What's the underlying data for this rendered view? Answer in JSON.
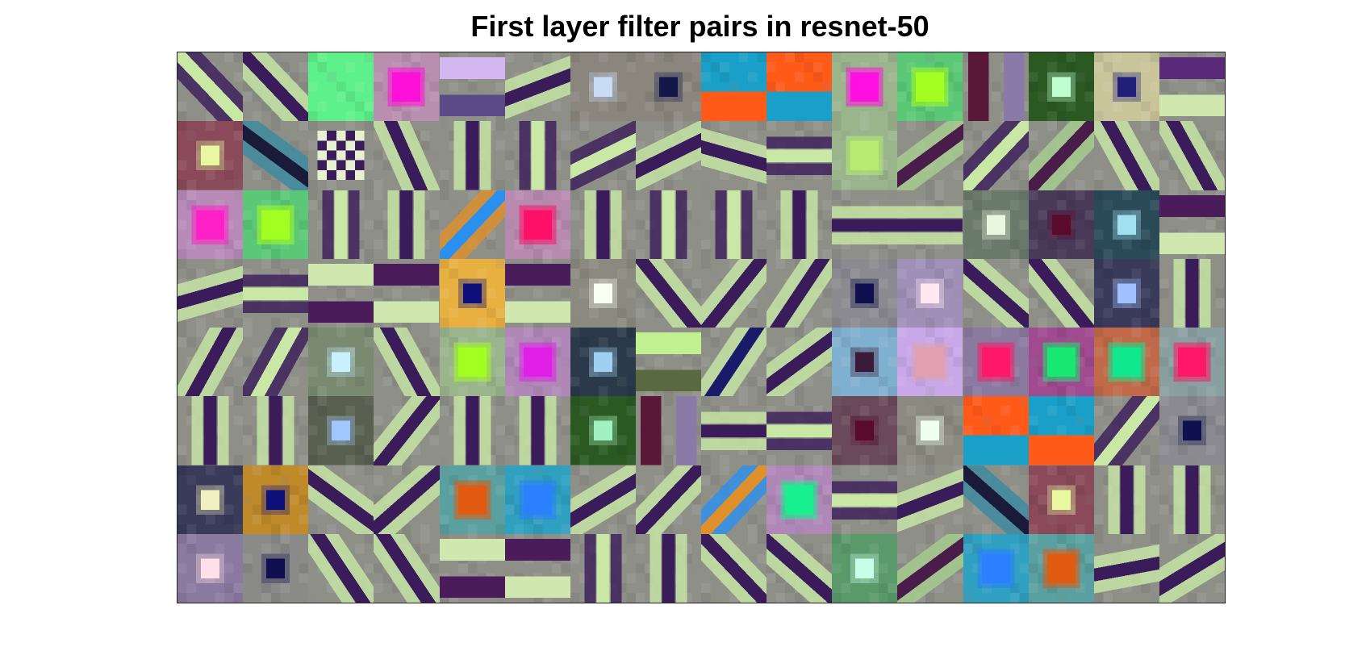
{
  "figure": {
    "title": "First layer filter pairs in resnet-50"
  },
  "grid": {
    "rows": 8,
    "cols": 16,
    "palette": {
      "gray": "#8e9088",
      "cream": "#c9e8a6",
      "purple": "#3a1c5a",
      "lavender": "#c7b8e6"
    },
    "tiles": [
      {
        "kind": "bar",
        "fg": "#c9e8a6",
        "bg2": "#3a1c5a",
        "ang": 45
      },
      {
        "kind": "bar",
        "fg": "#3a1c5a",
        "bg2": "#c9e8a6",
        "ang": 45
      },
      {
        "kind": "solid",
        "bg": "#5ef08a"
      },
      {
        "kind": "blob",
        "bg": "#b98fb0",
        "fg": "#ff10d8"
      },
      {
        "kind": "hstripe",
        "fg": "#d4b6f0",
        "bg2": "#5a4a88"
      },
      {
        "kind": "bar",
        "fg": "#3a1c5a",
        "bg2": "#c9e8a6",
        "ang": -20
      },
      {
        "kind": "dot",
        "bg": "#8a867e",
        "fg": "#c8dcf4"
      },
      {
        "kind": "dot",
        "bg": "#8a867e",
        "fg": "#141848"
      },
      {
        "kind": "split",
        "bg": "#1aa0c8",
        "fg": "#ff5a18"
      },
      {
        "kind": "split",
        "bg": "#ff5a18",
        "fg": "#1aa0c8"
      },
      {
        "kind": "blob",
        "bg": "#9ab48c",
        "fg": "#ff10e0"
      },
      {
        "kind": "blob",
        "bg": "#5ac876",
        "fg": "#a2ff20"
      },
      {
        "kind": "vstripe",
        "fg": "#5a1838",
        "bg2": "#8a7aa8"
      },
      {
        "kind": "dot",
        "bg": "#2a5a22",
        "fg": "#c0ffd0"
      },
      {
        "kind": "dot",
        "bg": "#cac49a",
        "fg": "#20207a"
      },
      {
        "kind": "hstripe",
        "fg": "#5a2a7a",
        "bg2": "#d0e8b0"
      },
      {
        "kind": "dot",
        "bg": "#8a4a5a",
        "fg": "#e8f8a0"
      },
      {
        "kind": "bar",
        "fg": "#1a1a3a",
        "bg2": "#3a8aa0",
        "ang": 35
      },
      {
        "kind": "check",
        "fg": "#e8f0d0",
        "bg2": "#3a1c5a"
      },
      {
        "kind": "bar",
        "fg": "#3a1c5a",
        "bg2": "#c9e8a6",
        "ang": 65
      },
      {
        "kind": "vbar",
        "fg": "#3a1c5a",
        "bg2": "#c9e8a6"
      },
      {
        "kind": "vbar",
        "fg": "#c9e8a6",
        "bg2": "#3a1c5a"
      },
      {
        "kind": "bar",
        "fg": "#c9e8a6",
        "bg2": "#3a1c5a",
        "ang": -25
      },
      {
        "kind": "bar",
        "fg": "#3a1c5a",
        "bg2": "#c9e8a6",
        "ang": -25
      },
      {
        "kind": "bar",
        "fg": "#3a1c5a",
        "bg2": "#c9e8a6",
        "ang": 15
      },
      {
        "kind": "hbar",
        "fg": "#c9e8a6",
        "bg2": "#3a1c5a"
      },
      {
        "kind": "blob",
        "bg": "#9ab48c",
        "fg": "#b8ec70"
      },
      {
        "kind": "bar",
        "fg": "#4a1c4a",
        "bg2": "#a8d090",
        "ang": -35
      },
      {
        "kind": "bar",
        "fg": "#c9e8a6",
        "bg2": "#3a1c5a",
        "ang": -45
      },
      {
        "kind": "bar",
        "fg": "#4a1c4a",
        "bg2": "#a8d090",
        "ang": -45
      },
      {
        "kind": "bar",
        "fg": "#3a1c5a",
        "bg2": "#c9e8a6",
        "ang": 60
      },
      {
        "kind": "bar",
        "fg": "#3a1c5a",
        "bg2": "#c9e8a6",
        "ang": 60
      },
      {
        "kind": "blob",
        "bg": "#b88ab8",
        "fg": "#ff20c8"
      },
      {
        "kind": "blob",
        "bg": "#5ac876",
        "fg": "#a2ff20"
      },
      {
        "kind": "vbar",
        "fg": "#c9e8a6",
        "bg2": "#3a1c5a"
      },
      {
        "kind": "vbar",
        "fg": "#3a1c5a",
        "bg2": "#c9e8a6"
      },
      {
        "kind": "bar",
        "fg": "#2a90f0",
        "bg2": "#e0902a",
        "ang": -45
      },
      {
        "kind": "blob",
        "bg": "#b88ab0",
        "fg": "#ff1068"
      },
      {
        "kind": "vbar",
        "fg": "#3a1c5a",
        "bg2": "#c9e8a6"
      },
      {
        "kind": "vbar",
        "fg": "#c9e8a6",
        "bg2": "#3a1c5a"
      },
      {
        "kind": "vbar",
        "fg": "#c9e8a6",
        "bg2": "#3a1c5a"
      },
      {
        "kind": "vbar",
        "fg": "#3a1c5a",
        "bg2": "#c9e8a6"
      },
      {
        "kind": "hbar",
        "fg": "#3a1c5a",
        "bg2": "#c9e8a6"
      },
      {
        "kind": "hbar",
        "fg": "#3a1c5a",
        "bg2": "#c9e8a6"
      },
      {
        "kind": "dot",
        "bg": "#6a7a6a",
        "fg": "#e8f8e0"
      },
      {
        "kind": "dot",
        "bg": "#4a3a5a",
        "fg": "#5a0a2a"
      },
      {
        "kind": "dot",
        "bg": "#2a4a58",
        "fg": "#a0e0f0"
      },
      {
        "kind": "hstripe",
        "fg": "#4a1c5a",
        "bg2": "#d0e8b0"
      },
      {
        "kind": "bar",
        "fg": "#3a1c5a",
        "bg2": "#c9e8a6",
        "ang": -15
      },
      {
        "kind": "hbar",
        "fg": "#c9e8a6",
        "bg2": "#3a1c5a"
      },
      {
        "kind": "hstripe",
        "fg": "#d0e8b0",
        "bg2": "#4a1c5a"
      },
      {
        "kind": "hstripe",
        "fg": "#4a1c5a",
        "bg2": "#d0e8b0"
      },
      {
        "kind": "dot",
        "bg": "#e8b040",
        "fg": "#10107a"
      },
      {
        "kind": "hstripe",
        "fg": "#4a1c5a",
        "bg2": "#d0e8b0"
      },
      {
        "kind": "dot",
        "bg": "#8a8a80",
        "fg": "#f8fff0"
      },
      {
        "kind": "bar",
        "fg": "#3a1c5a",
        "bg2": "#c9e8a6",
        "ang": 50
      },
      {
        "kind": "bar",
        "fg": "#3a1c5a",
        "bg2": "#c9e8a6",
        "ang": -50
      },
      {
        "kind": "bar",
        "fg": "#3a1c5a",
        "bg2": "#c9e8a6",
        "ang": -55
      },
      {
        "kind": "dot",
        "bg": "#8a8a90",
        "fg": "#101050"
      },
      {
        "kind": "dot",
        "bg": "#a090b8",
        "fg": "#ffe8f0"
      },
      {
        "kind": "bar",
        "fg": "#3a1c5a",
        "bg2": "#c9e8a6",
        "ang": 40
      },
      {
        "kind": "bar",
        "fg": "#3a1c5a",
        "bg2": "#c9e8a6",
        "ang": 50
      },
      {
        "kind": "dot",
        "bg": "#3a3a5a",
        "fg": "#a0c0ff"
      },
      {
        "kind": "vbar",
        "fg": "#3a1c5a",
        "bg2": "#c9e8a6"
      },
      {
        "kind": "bar",
        "fg": "#3a1c5a",
        "bg2": "#c9e8a6",
        "ang": -60
      },
      {
        "kind": "bar",
        "fg": "#c9e8a6",
        "bg2": "#3a1c5a",
        "ang": -60
      },
      {
        "kind": "dot",
        "bg": "#7a8a70",
        "fg": "#c8f0ff"
      },
      {
        "kind": "bar",
        "fg": "#3a1c5a",
        "bg2": "#c9e8a6",
        "ang": 60
      },
      {
        "kind": "blob",
        "bg": "#9ab48c",
        "fg": "#a2ff20"
      },
      {
        "kind": "blob",
        "bg": "#b088b8",
        "fg": "#e020e8"
      },
      {
        "kind": "dot",
        "bg": "#2a3a4a",
        "fg": "#a0d0f0"
      },
      {
        "kind": "hstripe",
        "fg": "#c0f090",
        "bg2": "#5a6a40"
      },
      {
        "kind": "bar",
        "fg": "#1a1a6a",
        "bg2": "#c9e8a6",
        "ang": -55
      },
      {
        "kind": "bar",
        "fg": "#3a1c5a",
        "bg2": "#c9e8a6",
        "ang": -35
      },
      {
        "kind": "dot",
        "bg": "#80b0d0",
        "fg": "#3a1c3a"
      },
      {
        "kind": "blob",
        "bg": "#c8a8e8",
        "fg": "#e0a0b0"
      },
      {
        "kind": "blob",
        "bg": "#8a7aa0",
        "fg": "#ff1868"
      },
      {
        "kind": "blob",
        "bg": "#a04a90",
        "fg": "#18e870"
      },
      {
        "kind": "blob",
        "bg": "#c06a4a",
        "fg": "#10e890"
      },
      {
        "kind": "blob",
        "bg": "#8aa0a0",
        "fg": "#ff1868"
      },
      {
        "kind": "vbar",
        "fg": "#3a1c5a",
        "bg2": "#c9e8a6"
      },
      {
        "kind": "vbar",
        "fg": "#3a1c5a",
        "bg2": "#c9e8a6"
      },
      {
        "kind": "dot",
        "bg": "#5a6050",
        "fg": "#a0c8ff"
      },
      {
        "kind": "bar",
        "fg": "#3a1c5a",
        "bg2": "#c9e8a6",
        "ang": -50
      },
      {
        "kind": "vbar",
        "fg": "#3a1c5a",
        "bg2": "#c9e8a6"
      },
      {
        "kind": "vbar",
        "fg": "#3a1c5a",
        "bg2": "#c9e8a6"
      },
      {
        "kind": "dot",
        "bg": "#2a5a22",
        "fg": "#a0f0c0"
      },
      {
        "kind": "vstripe",
        "fg": "#5a1838",
        "bg2": "#8a7aa8"
      },
      {
        "kind": "hbar",
        "fg": "#3a1c5a",
        "bg2": "#c9e8a6"
      },
      {
        "kind": "hbar",
        "fg": "#c9e8a6",
        "bg2": "#3a1c5a"
      },
      {
        "kind": "dot",
        "bg": "#6a4a5a",
        "fg": "#5a0a2a"
      },
      {
        "kind": "dot",
        "bg": "#8a8a80",
        "fg": "#f0fff0"
      },
      {
        "kind": "split",
        "bg": "#ff5a18",
        "fg": "#1aa0c8"
      },
      {
        "kind": "split",
        "bg": "#1aa0c8",
        "fg": "#ff5a18"
      },
      {
        "kind": "bar",
        "fg": "#c9e8a6",
        "bg2": "#3a1c5a",
        "ang": -50
      },
      {
        "kind": "dot",
        "bg": "#8a8a90",
        "fg": "#101050"
      },
      {
        "kind": "dot",
        "bg": "#3a3a5a",
        "fg": "#f0f0c0"
      },
      {
        "kind": "dot",
        "bg": "#c08a2a",
        "fg": "#10107a"
      },
      {
        "kind": "bar",
        "fg": "#3a1c5a",
        "bg2": "#c9e8a6",
        "ang": 35
      },
      {
        "kind": "bar",
        "fg": "#3a1c5a",
        "bg2": "#c9e8a6",
        "ang": -40
      },
      {
        "kind": "blob",
        "bg": "#5aa0a0",
        "fg": "#e05a10"
      },
      {
        "kind": "blob",
        "bg": "#30a0c0",
        "fg": "#2a80ff"
      },
      {
        "kind": "bar",
        "fg": "#3a1c5a",
        "bg2": "#c9e8a6",
        "ang": -30
      },
      {
        "kind": "bar",
        "fg": "#3a1c5a",
        "bg2": "#c9e8a6",
        "ang": -45
      },
      {
        "kind": "bar",
        "fg": "#e0902a",
        "bg2": "#2a90f0",
        "ang": -45
      },
      {
        "kind": "blob",
        "bg": "#b088b8",
        "fg": "#18f090"
      },
      {
        "kind": "hbar",
        "fg": "#c9e8a6",
        "bg2": "#3a1c5a"
      },
      {
        "kind": "bar",
        "fg": "#3a1c5a",
        "bg2": "#c9e8a6",
        "ang": -20
      },
      {
        "kind": "bar",
        "fg": "#1a1a3a",
        "bg2": "#3a8aa0",
        "ang": 40
      },
      {
        "kind": "dot",
        "bg": "#8a4a5a",
        "fg": "#e8f8a0"
      },
      {
        "kind": "vbar",
        "fg": "#3a1c5a",
        "bg2": "#c9e8a6"
      },
      {
        "kind": "vbar",
        "fg": "#3a1c5a",
        "bg2": "#c9e8a6"
      },
      {
        "kind": "dot",
        "bg": "#8a7aa0",
        "fg": "#ffe0e8"
      },
      {
        "kind": "dot",
        "bg": "#8a8a88",
        "fg": "#101050"
      },
      {
        "kind": "bar",
        "fg": "#3a1c5a",
        "bg2": "#c9e8a6",
        "ang": 55
      },
      {
        "kind": "bar",
        "fg": "#3a1c5a",
        "bg2": "#c9e8a6",
        "ang": 55
      },
      {
        "kind": "hstripe",
        "fg": "#d0e8b0",
        "bg2": "#4a1c5a"
      },
      {
        "kind": "hstripe",
        "fg": "#4a1c5a",
        "bg2": "#d0e8b0"
      },
      {
        "kind": "vbar",
        "fg": "#c9e8a6",
        "bg2": "#3a1c5a"
      },
      {
        "kind": "vbar",
        "fg": "#3a1c5a",
        "bg2": "#c9e8a6"
      },
      {
        "kind": "bar",
        "fg": "#3a1c5a",
        "bg2": "#c9e8a6",
        "ang": 45
      },
      {
        "kind": "bar",
        "fg": "#3a1c5a",
        "bg2": "#c9e8a6",
        "ang": 40
      },
      {
        "kind": "dot",
        "bg": "#5a9a6a",
        "fg": "#c8ffe8"
      },
      {
        "kind": "bar",
        "fg": "#4a1c4a",
        "bg2": "#a8d090",
        "ang": -35
      },
      {
        "kind": "blob",
        "bg": "#30a0c0",
        "fg": "#2a80ff"
      },
      {
        "kind": "blob",
        "bg": "#5aa0a0",
        "fg": "#e05a10"
      },
      {
        "kind": "bar",
        "fg": "#3a1c5a",
        "bg2": "#c9e8a6",
        "ang": -10
      },
      {
        "kind": "bar",
        "fg": "#3a1c5a",
        "bg2": "#c9e8a6",
        "ang": -30
      }
    ]
  }
}
